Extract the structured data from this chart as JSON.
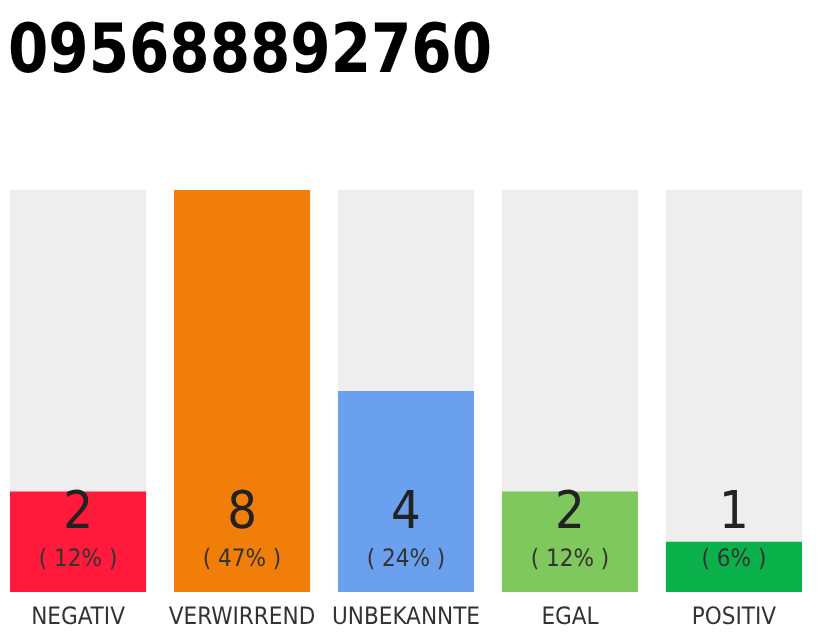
{
  "chart_data": {
    "type": "bar",
    "title": "095688892760",
    "categories": [
      "NEGATIV",
      "VERWIRREND",
      "UNBEKANNTE",
      "EGAL",
      "POSITIV"
    ],
    "values": [
      2,
      8,
      4,
      2,
      1
    ],
    "colors": [
      "#ff1a3c",
      "#f27e0a",
      "#6aa0ee",
      "#7ec85e",
      "#0ab04a"
    ],
    "value_labels": [
      "2\n( 12% )",
      "8\n( 47% )",
      "4\n( 24% )",
      "2\n( 12% )",
      "1\n( 6% )"
    ]
  }
}
